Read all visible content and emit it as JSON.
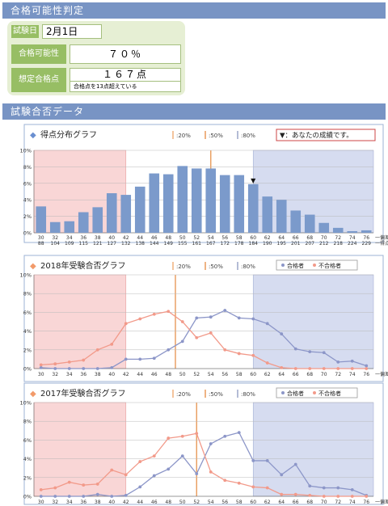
{
  "header": {
    "title": "合格可能性判定"
  },
  "exam": {
    "label": "試験日",
    "date": "2月1日"
  },
  "possibility": {
    "label": "合格可能性",
    "value": "７０％"
  },
  "estimate": {
    "label": "想定合格点",
    "value": "１６７点",
    "note": "合格点を13点超えている"
  },
  "section": {
    "title": "試験合否データ"
  },
  "marker_labels": [
    "20%",
    "50%",
    "80%"
  ],
  "colors": {
    "low": "#f9d6d6",
    "high": "#d6dcf0",
    "m20": "#f0b07c",
    "m50": "#e89a5a",
    "m80": "#9aa6c8",
    "bar": "#7b9acb",
    "pass": "#8c96c8",
    "fail": "#f29a8a",
    "title_bullet_blue": "#6a8fd0",
    "title_bullet_orange": "#f29a6a"
  },
  "chart_data": [
    {
      "type": "bar",
      "title": "得点分布グラフ",
      "your_score_label": "▼：あなたの成績です。",
      "x_axis_label1": "偏差値",
      "x_axis_label2": "得点",
      "categories": [
        "30",
        "32",
        "34",
        "36",
        "38",
        "40",
        "42",
        "44",
        "46",
        "48",
        "50",
        "52",
        "54",
        "56",
        "58",
        "60",
        "62",
        "64",
        "66",
        "68",
        "70",
        "72",
        "74",
        "76"
      ],
      "categories2": [
        "88",
        "104",
        "109",
        "115",
        "121",
        "127",
        "132",
        "138",
        "144",
        "149",
        "155",
        "161",
        "167",
        "172",
        "178",
        "184",
        "190",
        "195",
        "201",
        "207",
        "212",
        "218",
        "224",
        "229"
      ],
      "values": [
        3.2,
        1.3,
        1.4,
        2.5,
        3.1,
        4.8,
        4.6,
        5.6,
        7.2,
        7.1,
        8.1,
        7.8,
        7.8,
        7.0,
        7.0,
        5.9,
        4.4,
        4.0,
        2.7,
        2.2,
        1.2,
        0.6,
        0.2,
        0.3
      ],
      "ylim": [
        0,
        10
      ],
      "yticks": [
        "0%",
        "2%",
        "4%",
        "6%",
        "8%",
        "10%"
      ],
      "your_score_index": 15,
      "markers_index": [
        6,
        12,
        15
      ]
    },
    {
      "type": "line",
      "title": "2018年受験合否グラフ",
      "legend": [
        "合格者",
        "不合格者"
      ],
      "x_axis_label": "偏差値",
      "x": [
        "30",
        "32",
        "34",
        "36",
        "38",
        "40",
        "42",
        "44",
        "46",
        "48",
        "50",
        "52",
        "54",
        "56",
        "58",
        "60",
        "62",
        "64",
        "66",
        "68",
        "70",
        "72",
        "74",
        "76"
      ],
      "series": [
        {
          "name": "合格者",
          "values": [
            0.1,
            0,
            0,
            0,
            0,
            0.1,
            1.0,
            1.0,
            1.1,
            2.0,
            2.9,
            5.4,
            5.5,
            6.2,
            5.4,
            5.3,
            4.8,
            3.7,
            2.1,
            1.8,
            1.7,
            0.7,
            0.8,
            0.3
          ]
        },
        {
          "name": "不合格者",
          "values": [
            0.4,
            0.5,
            0.7,
            0.9,
            2.0,
            2.6,
            4.8,
            5.3,
            5.8,
            6.1,
            5.0,
            3.3,
            3.8,
            2.0,
            1.6,
            1.4,
            0.6,
            0.1,
            0,
            0,
            0,
            0,
            0,
            0
          ]
        }
      ],
      "ylim": [
        0,
        10
      ],
      "yticks": [
        "0%",
        "2%",
        "4%",
        "6%",
        "8%",
        "10%"
      ],
      "markers_index": [
        6,
        9.5,
        15
      ]
    },
    {
      "type": "line",
      "title": "2017年受験合否グラフ",
      "legend": [
        "合格者",
        "不合格者"
      ],
      "x_axis_label": "偏差値",
      "x": [
        "30",
        "32",
        "34",
        "36",
        "38",
        "40",
        "42",
        "44",
        "46",
        "48",
        "50",
        "52",
        "54",
        "56",
        "58",
        "60",
        "62",
        "64",
        "66",
        "68",
        "70",
        "72",
        "74",
        "76"
      ],
      "series": [
        {
          "name": "合格者",
          "values": [
            0,
            0,
            0,
            0,
            0.2,
            0,
            0.1,
            1.0,
            2.2,
            2.9,
            4.3,
            2.4,
            5.6,
            6.4,
            6.8,
            3.8,
            3.8,
            2.3,
            3.4,
            1.1,
            0.9,
            0.9,
            0.7,
            0.1
          ]
        },
        {
          "name": "不合格者",
          "values": [
            0.7,
            0.9,
            1.5,
            1.2,
            1.3,
            2.8,
            2.3,
            3.7,
            4.3,
            6.2,
            6.4,
            6.7,
            2.6,
            1.7,
            1.4,
            1.0,
            0.9,
            0.2,
            0.2,
            0.1,
            0,
            0,
            0,
            0
          ]
        }
      ],
      "ylim": [
        0,
        10
      ],
      "yticks": [
        "0%",
        "2%",
        "4%",
        "6%",
        "8%",
        "10%"
      ],
      "markers_index": [
        6,
        11,
        15
      ]
    }
  ]
}
